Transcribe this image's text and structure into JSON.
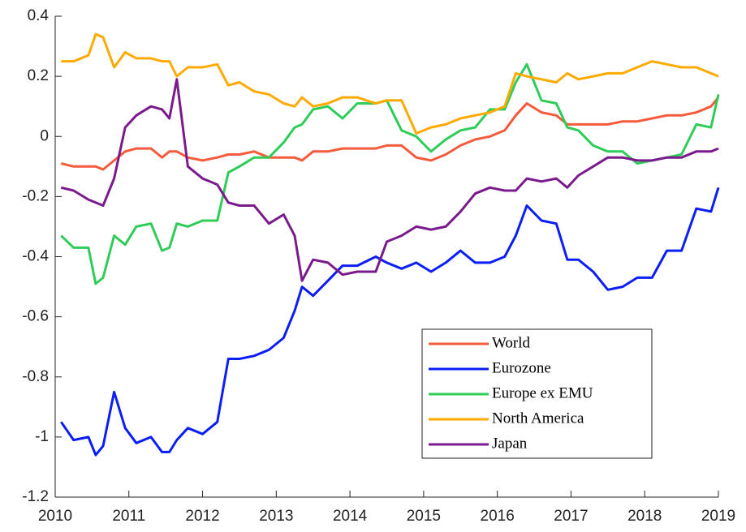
{
  "chart_data": {
    "type": "line",
    "x": [
      2010.08,
      2010.25,
      2010.45,
      2010.55,
      2010.65,
      2010.8,
      2010.95,
      2011.1,
      2011.3,
      2011.45,
      2011.55,
      2011.65,
      2011.8,
      2012.0,
      2012.2,
      2012.35,
      2012.5,
      2012.7,
      2012.9,
      2013.1,
      2013.25,
      2013.35,
      2013.5,
      2013.7,
      2013.9,
      2014.1,
      2014.35,
      2014.5,
      2014.7,
      2014.9,
      2015.1,
      2015.3,
      2015.5,
      2015.7,
      2015.9,
      2016.1,
      2016.25,
      2016.4,
      2016.6,
      2016.8,
      2016.95,
      2017.1,
      2017.3,
      2017.5,
      2017.7,
      2017.9,
      2018.1,
      2018.3,
      2018.5,
      2018.7,
      2018.9,
      2019.0
    ],
    "series": [
      {
        "name": "World",
        "color": "#f45a3c",
        "values": [
          -0.09,
          -0.1,
          -0.1,
          -0.1,
          -0.11,
          -0.08,
          -0.05,
          -0.04,
          -0.04,
          -0.07,
          -0.05,
          -0.05,
          -0.07,
          -0.08,
          -0.07,
          -0.06,
          -0.06,
          -0.05,
          -0.07,
          -0.07,
          -0.07,
          -0.08,
          -0.05,
          -0.05,
          -0.04,
          -0.04,
          -0.04,
          -0.03,
          -0.03,
          -0.07,
          -0.08,
          -0.06,
          -0.03,
          -0.01,
          0.0,
          0.02,
          0.07,
          0.11,
          0.08,
          0.07,
          0.04,
          0.04,
          0.04,
          0.04,
          0.05,
          0.05,
          0.06,
          0.07,
          0.07,
          0.08,
          0.1,
          0.13
        ]
      },
      {
        "name": "Eurozone",
        "color": "#0a1ef5",
        "values": [
          -0.95,
          -1.01,
          -1.0,
          -1.06,
          -1.03,
          -0.85,
          -0.97,
          -1.02,
          -1.0,
          -1.05,
          -1.05,
          -1.01,
          -0.97,
          -0.99,
          -0.95,
          -0.74,
          -0.74,
          -0.73,
          -0.71,
          -0.67,
          -0.58,
          -0.5,
          -0.53,
          -0.48,
          -0.43,
          -0.43,
          -0.4,
          -0.42,
          -0.44,
          -0.42,
          -0.45,
          -0.42,
          -0.38,
          -0.42,
          -0.42,
          -0.4,
          -0.33,
          -0.23,
          -0.28,
          -0.29,
          -0.41,
          -0.41,
          -0.45,
          -0.51,
          -0.5,
          -0.47,
          -0.47,
          -0.38,
          -0.38,
          -0.24,
          -0.25,
          -0.17
        ]
      },
      {
        "name": "Europe ex EMU",
        "color": "#2fcc5a",
        "values": [
          -0.33,
          -0.37,
          -0.37,
          -0.49,
          -0.47,
          -0.33,
          -0.36,
          -0.3,
          -0.29,
          -0.38,
          -0.37,
          -0.29,
          -0.3,
          -0.28,
          -0.28,
          -0.12,
          -0.1,
          -0.07,
          -0.07,
          -0.02,
          0.03,
          0.04,
          0.09,
          0.1,
          0.06,
          0.11,
          0.11,
          0.12,
          0.02,
          0.0,
          -0.05,
          -0.01,
          0.02,
          0.03,
          0.09,
          0.09,
          0.18,
          0.24,
          0.12,
          0.11,
          0.03,
          0.02,
          -0.03,
          -0.05,
          -0.05,
          -0.09,
          -0.08,
          -0.07,
          -0.06,
          0.04,
          0.03,
          0.14
        ]
      },
      {
        "name": "North America",
        "color": "#ffaa00",
        "values": [
          0.25,
          0.25,
          0.27,
          0.34,
          0.33,
          0.23,
          0.28,
          0.26,
          0.26,
          0.25,
          0.25,
          0.2,
          0.23,
          0.23,
          0.24,
          0.17,
          0.18,
          0.15,
          0.14,
          0.11,
          0.1,
          0.13,
          0.1,
          0.11,
          0.13,
          0.13,
          0.11,
          0.12,
          0.12,
          0.01,
          0.03,
          0.04,
          0.06,
          0.07,
          0.08,
          0.1,
          0.21,
          0.2,
          0.19,
          0.18,
          0.21,
          0.19,
          0.2,
          0.21,
          0.21,
          0.23,
          0.25,
          0.24,
          0.23,
          0.23,
          0.21,
          0.2
        ]
      },
      {
        "name": "Japan",
        "color": "#7a1a8c",
        "values": [
          -0.17,
          -0.18,
          -0.21,
          -0.22,
          -0.23,
          -0.14,
          0.03,
          0.07,
          0.1,
          0.09,
          0.06,
          0.19,
          -0.1,
          -0.14,
          -0.16,
          -0.22,
          -0.23,
          -0.23,
          -0.29,
          -0.26,
          -0.33,
          -0.48,
          -0.41,
          -0.42,
          -0.46,
          -0.45,
          -0.45,
          -0.35,
          -0.33,
          -0.3,
          -0.31,
          -0.3,
          -0.25,
          -0.19,
          -0.17,
          -0.18,
          -0.18,
          -0.14,
          -0.15,
          -0.14,
          -0.17,
          -0.13,
          -0.1,
          -0.07,
          -0.07,
          -0.08,
          -0.08,
          -0.07,
          -0.07,
          -0.05,
          -0.05,
          -0.04
        ]
      }
    ],
    "xlim": [
      2010,
      2019
    ],
    "xticks": [
      2010,
      2011,
      2012,
      2013,
      2014,
      2015,
      2016,
      2017,
      2018,
      2019
    ],
    "ylim": [
      -1.2,
      0.4
    ],
    "yticks": [
      -1.2,
      -1,
      -0.8,
      -0.6,
      -0.4,
      -0.2,
      0,
      0.2,
      0.4
    ],
    "grid": false,
    "legend_position": "lower right"
  }
}
